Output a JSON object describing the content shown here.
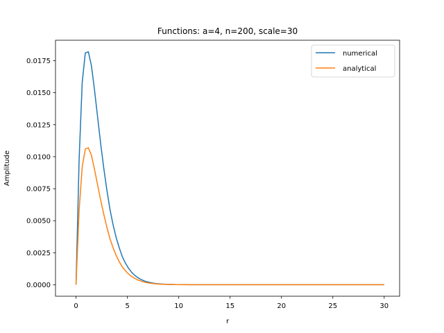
{
  "chart_data": {
    "type": "line",
    "title": "Functions: a=4, n=200, scale=30",
    "xlabel": "r",
    "ylabel": "Amplitude",
    "xlim": [
      -2,
      31.5
    ],
    "ylim": [
      -0.0009,
      0.0191
    ],
    "xticks": [
      0,
      5,
      10,
      15,
      20,
      25,
      30
    ],
    "xtick_labels": [
      "0",
      "5",
      "10",
      "15",
      "20",
      "25",
      "30"
    ],
    "yticks": [
      0.0,
      0.0025,
      0.005,
      0.0075,
      0.01,
      0.0125,
      0.015,
      0.0175
    ],
    "ytick_labels": [
      "0.0000",
      "0.0025",
      "0.0050",
      "0.0075",
      "0.0100",
      "0.0125",
      "0.0150",
      "0.0175"
    ],
    "grid": false,
    "legend": "top-right",
    "x": [
      0,
      0.3,
      0.6,
      0.9,
      1.2,
      1.5,
      1.8,
      2.1,
      2.4,
      2.7,
      3.0,
      3.3,
      3.6,
      3.9,
      4.2,
      4.5,
      4.8,
      5.1,
      5.4,
      5.7,
      6.0,
      6.3,
      6.6,
      6.9,
      7.2,
      7.5,
      7.8,
      8.1,
      8.4,
      8.7,
      9.0,
      9.3,
      9.6,
      9.9,
      10.5,
      11.1,
      11.7,
      12.3,
      12.9,
      13.5,
      15,
      17,
      20,
      23,
      26,
      28,
      30
    ],
    "series": [
      {
        "name": "numerical",
        "color": "#1f77b4",
        "values": [
          0.0,
          0.0098,
          0.0158,
          0.0181,
          0.0182,
          0.0171,
          0.0152,
          0.0131,
          0.011,
          0.0091,
          0.0074,
          0.0059,
          0.0047,
          0.0037,
          0.0029,
          0.0022,
          0.0017,
          0.0013,
          0.00098,
          0.00074,
          0.00056,
          0.00042,
          0.00031,
          0.00023,
          0.00017,
          0.000125,
          9e-05,
          6.6e-05,
          4.8e-05,
          3.5e-05,
          2.5e-05,
          1.8e-05,
          1.3e-05,
          9.5e-06,
          5e-06,
          2.6e-06,
          1.3e-06,
          7e-07,
          3e-07,
          2e-07,
          0.0,
          0.0,
          0.0,
          0.0,
          0.0,
          0.0,
          0.0
        ]
      },
      {
        "name": "analytical",
        "color": "#ff7f0e",
        "values": [
          0.0,
          0.0058,
          0.0092,
          0.0106,
          0.0107,
          0.0101,
          0.009,
          0.0078,
          0.0066,
          0.0055,
          0.0045,
          0.0036,
          0.0029,
          0.0023,
          0.0018,
          0.0014,
          0.0011,
          0.00085,
          0.00065,
          0.0005,
          0.00038,
          0.00029,
          0.00022,
          0.00016,
          0.00012,
          9e-05,
          6.6e-05,
          4.9e-05,
          3.6e-05,
          2.6e-05,
          1.9e-05,
          1.4e-05,
          1e-05,
          7.3e-06,
          3.9e-06,
          2e-06,
          1e-06,
          5e-07,
          3e-07,
          1e-07,
          0.0,
          0.0,
          0.0,
          0.0,
          0.0,
          0.0,
          0.0
        ]
      }
    ]
  }
}
